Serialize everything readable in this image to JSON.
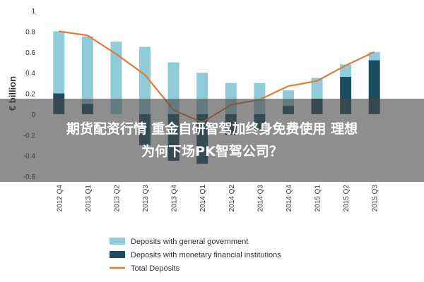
{
  "chart_data": {
    "type": "bar",
    "categories": [
      "2012 Q4",
      "2013 Q1",
      "2013 Q2",
      "2013 Q3",
      "2013 Q4",
      "2014 Q1",
      "2014 Q2",
      "2014 Q3",
      "2014 Q4",
      "2015 Q1",
      "2015 Q2",
      "2015 Q3"
    ],
    "series": [
      {
        "name": "Deposits with general government",
        "kind": "bar",
        "color": "#8fcbd8",
        "values": [
          0.6,
          0.65,
          0.7,
          0.65,
          0.5,
          0.4,
          0.3,
          0.3,
          0.15,
          0.2,
          0.12,
          0.08
        ]
      },
      {
        "name": "Deposits with monetary financial institutions",
        "kind": "bar",
        "color": "#1d4e60",
        "values": [
          0.2,
          0.1,
          0.0,
          -0.3,
          -0.45,
          -0.48,
          -0.2,
          -0.15,
          0.08,
          0.15,
          0.36,
          0.52
        ]
      },
      {
        "name": "Total Deposits",
        "kind": "line",
        "color": "#e07b39",
        "values": [
          0.8,
          0.76,
          0.58,
          0.38,
          0.04,
          -0.08,
          0.09,
          0.14,
          0.27,
          0.32,
          0.47,
          0.6
        ]
      }
    ],
    "yticks": [
      "1",
      "0.8",
      "0.6",
      "0.4",
      "0.2",
      "0",
      "-0.2",
      "-0.4",
      "-0.6"
    ],
    "ylim": [
      -0.6,
      1
    ],
    "ylabel": "€ billion",
    "legend_position": "bottom-left",
    "grid": false
  },
  "banner": {
    "line1": "期货配资行情 重金自研智驾加终身免费使用 理想",
    "line2": "为何下场PK智驾公司？"
  }
}
